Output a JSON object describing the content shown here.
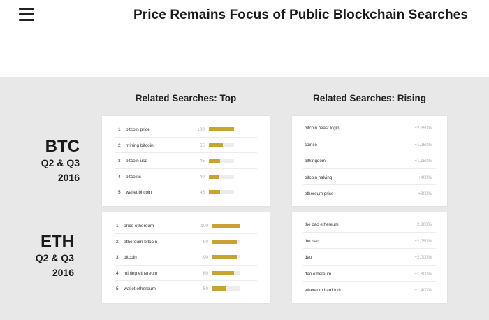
{
  "header": {
    "title": "Price Remains Focus of Public Blockchain Searches"
  },
  "icons": {
    "menu": "hamburger-menu-icon"
  },
  "colors": {
    "bar": "#c9a235",
    "track": "#ececec",
    "background": "#e8e8e8"
  },
  "columns": {
    "top": "Related Searches: Top",
    "rising": "Related Searches: Rising"
  },
  "rows": {
    "btc": {
      "coin": "BTC",
      "period": "Q2 & Q3",
      "year": "2016"
    },
    "eth": {
      "coin": "ETH",
      "period": "Q2 & Q3",
      "year": "2016"
    }
  },
  "chart_data": [
    {
      "type": "bar",
      "title": "Related Searches: Top",
      "group": "BTC",
      "categories": [
        "bitcoin price",
        "mining bitcoin",
        "bitcoin usd",
        "bitcoins",
        "wallet bitcoin"
      ],
      "ranks": [
        "1",
        "2",
        "3",
        "4",
        "5"
      ],
      "values": [
        100,
        55,
        45,
        40,
        45
      ],
      "ylim": [
        0,
        100
      ]
    },
    {
      "type": "table",
      "title": "Related Searches: Rising",
      "group": "BTC",
      "categories": [
        "bitcoin beast login",
        "coince",
        "bitkingdom",
        "bitcoin halving",
        "ethereum price"
      ],
      "changes": [
        "+2,350%",
        "+1,250%",
        "+1,150%",
        "+400%",
        "+300%"
      ]
    },
    {
      "type": "bar",
      "title": "Related Searches: Top",
      "group": "ETH",
      "categories": [
        "price ethereum",
        "ethereum bitcoin",
        "bitcoin",
        "mining ethereum",
        "wallet ethereum"
      ],
      "ranks": [
        "1",
        "2",
        "3",
        "4",
        "5"
      ],
      "values": [
        100,
        90,
        90,
        80,
        50
      ],
      "ylim": [
        0,
        100
      ]
    },
    {
      "type": "table",
      "title": "Related Searches: Rising",
      "group": "ETH",
      "categories": [
        "the dao ethereum",
        "the dao",
        "dao",
        "dao ethereum",
        "ethereum hard fork"
      ],
      "changes": [
        "+2,800%",
        "+2,050%",
        "+2,000%",
        "+1,800%",
        "+1,400%"
      ]
    }
  ]
}
